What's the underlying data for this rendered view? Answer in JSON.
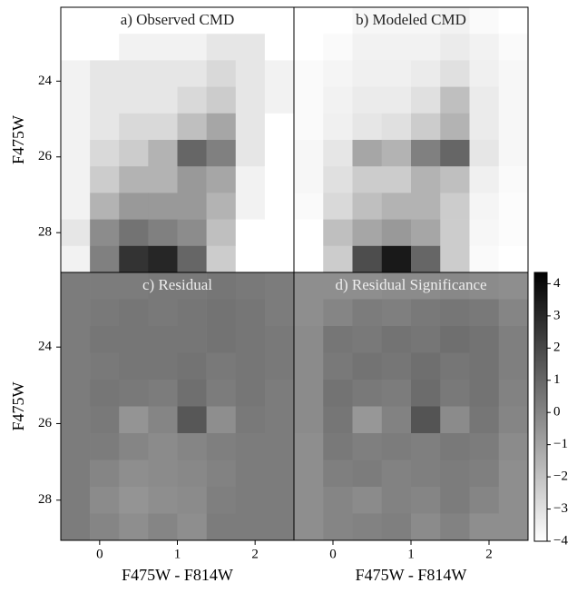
{
  "chart_data": [
    {
      "type": "heatmap",
      "title": "a) Observed CMD",
      "cmap": "gray_r",
      "zlim": [
        0,
        1
      ],
      "xbins": [
        -0.5,
        -0.125,
        0.25,
        0.625,
        1.0,
        1.375,
        1.75,
        2.125,
        2.5
      ],
      "ybins": [
        22.05,
        22.75,
        23.45,
        24.15,
        24.85,
        25.55,
        26.25,
        26.95,
        27.65,
        28.35,
        29.05
      ],
      "xlim": [
        -0.5,
        2.5
      ],
      "ylim": [
        22.05,
        29.05
      ],
      "ylabel": "F475W",
      "yticks": [
        24,
        26,
        28
      ],
      "z": [
        [
          0,
          0,
          0,
          0,
          0,
          0,
          0,
          0
        ],
        [
          0,
          0,
          0.05,
          0.05,
          0.05,
          0.1,
          0.1,
          0
        ],
        [
          0.05,
          0.1,
          0.1,
          0.1,
          0.1,
          0.15,
          0.1,
          0.05
        ],
        [
          0.05,
          0.1,
          0.1,
          0.1,
          0.15,
          0.2,
          0.1,
          0.05
        ],
        [
          0.05,
          0.1,
          0.15,
          0.15,
          0.25,
          0.35,
          0.1,
          0
        ],
        [
          0.05,
          0.15,
          0.2,
          0.3,
          0.6,
          0.5,
          0.1,
          0
        ],
        [
          0.05,
          0.2,
          0.3,
          0.3,
          0.4,
          0.35,
          0.05,
          0
        ],
        [
          0.05,
          0.3,
          0.4,
          0.4,
          0.4,
          0.3,
          0.05,
          0
        ],
        [
          0.1,
          0.45,
          0.55,
          0.5,
          0.45,
          0.25,
          0,
          0
        ],
        [
          0.05,
          0.5,
          0.8,
          0.85,
          0.6,
          0.2,
          0,
          0
        ]
      ]
    },
    {
      "type": "heatmap",
      "title": "b) Modeled CMD",
      "cmap": "gray_r",
      "zlim": [
        0,
        1
      ],
      "xbins": [
        -0.5,
        -0.125,
        0.25,
        0.625,
        1.0,
        1.375,
        1.75,
        2.125,
        2.5
      ],
      "ybins": [
        22.05,
        22.75,
        23.45,
        24.15,
        24.85,
        25.55,
        26.25,
        26.95,
        27.65,
        28.35,
        29.05
      ],
      "xlim": [
        -0.5,
        2.5
      ],
      "ylim": [
        22.05,
        29.05
      ],
      "z": [
        [
          0,
          0,
          0.03,
          0.03,
          0.03,
          0.05,
          0.02,
          0
        ],
        [
          0,
          0.02,
          0.05,
          0.05,
          0.05,
          0.08,
          0.05,
          0.02
        ],
        [
          0.02,
          0.04,
          0.06,
          0.06,
          0.08,
          0.12,
          0.06,
          0.03
        ],
        [
          0.02,
          0.05,
          0.08,
          0.08,
          0.12,
          0.25,
          0.08,
          0.03
        ],
        [
          0.02,
          0.06,
          0.1,
          0.12,
          0.2,
          0.3,
          0.08,
          0.03
        ],
        [
          0.03,
          0.1,
          0.35,
          0.3,
          0.5,
          0.6,
          0.1,
          0.03
        ],
        [
          0.03,
          0.12,
          0.2,
          0.2,
          0.3,
          0.25,
          0.06,
          0.02
        ],
        [
          0.02,
          0.15,
          0.25,
          0.3,
          0.3,
          0.2,
          0.04,
          0.01
        ],
        [
          0,
          0.25,
          0.35,
          0.4,
          0.35,
          0.2,
          0.03,
          0.01
        ],
        [
          0,
          0.2,
          0.7,
          0.9,
          0.6,
          0.2,
          0.02,
          0
        ]
      ]
    },
    {
      "type": "heatmap",
      "title": "c) Residual",
      "cmap": "gray_r",
      "zlim": [
        -4,
        4.35
      ],
      "xbins": [
        -0.5,
        -0.125,
        0.25,
        0.625,
        1.0,
        1.375,
        1.75,
        2.125,
        2.5
      ],
      "ybins": [
        22.05,
        22.75,
        23.45,
        24.15,
        24.85,
        25.55,
        26.25,
        26.95,
        27.65,
        28.35,
        29.05
      ],
      "xlim": [
        -0.5,
        2.5
      ],
      "ylim": [
        22.05,
        29.05
      ],
      "xlabel": "F475W - F814W",
      "ylabel": "F475W",
      "xticks": [
        0,
        1,
        2
      ],
      "yticks": [
        24,
        26,
        28
      ],
      "z": [
        [
          0.3,
          0.3,
          0.3,
          0.4,
          0.4,
          0.5,
          0.4,
          0.3
        ],
        [
          0.3,
          0.4,
          0.5,
          0.4,
          0.5,
          0.6,
          0.5,
          0.3
        ],
        [
          0.3,
          0.5,
          0.5,
          0.5,
          0.5,
          0.6,
          0.5,
          0.4
        ],
        [
          0.3,
          0.4,
          0.5,
          0.5,
          0.6,
          0.4,
          0.5,
          0.4
        ],
        [
          0.3,
          0.5,
          0.4,
          0.3,
          0.7,
          0.3,
          0.5,
          0.3
        ],
        [
          0.3,
          0.4,
          -0.5,
          0,
          1.5,
          -0.3,
          0.4,
          0.3
        ],
        [
          0.3,
          0.3,
          0,
          -0.2,
          0,
          0.2,
          0.3,
          0.3
        ],
        [
          0.3,
          0,
          -0.3,
          -0.2,
          -0.1,
          0.1,
          0.3,
          0.3
        ],
        [
          0.3,
          -0.2,
          -0.5,
          -0.3,
          -0.2,
          0.2,
          0.3,
          0.3
        ],
        [
          0.3,
          0,
          -0.3,
          0,
          -0.3,
          0.3,
          0.3,
          0.3
        ]
      ]
    },
    {
      "type": "heatmap",
      "title": "d) Residual Significance",
      "cmap": "gray_r",
      "zlim": [
        -4,
        4.35
      ],
      "xbins": [
        -0.5,
        -0.125,
        0.25,
        0.625,
        1.0,
        1.375,
        1.75,
        2.125,
        2.5
      ],
      "ybins": [
        22.05,
        22.75,
        23.45,
        24.15,
        24.85,
        25.55,
        26.25,
        26.95,
        27.65,
        28.35,
        29.05
      ],
      "xlim": [
        -0.5,
        2.5
      ],
      "ylim": [
        22.05,
        29.05
      ],
      "xlabel": "F475W - F814W",
      "xticks": [
        0,
        1,
        2
      ],
      "z": [
        [
          -0.3,
          -0.3,
          -0.3,
          -0.2,
          -0.2,
          -0.1,
          -0.2,
          -0.3
        ],
        [
          -0.3,
          0,
          0.3,
          0.2,
          0.4,
          0.5,
          0.4,
          0
        ],
        [
          -0.2,
          0.5,
          0.4,
          0.6,
          0.5,
          0.7,
          0.6,
          0.2
        ],
        [
          -0.2,
          0.4,
          0.6,
          0.5,
          0.7,
          0.5,
          0.6,
          0.2
        ],
        [
          -0.2,
          0.6,
          0.4,
          0.3,
          0.8,
          0.4,
          0.6,
          0.1
        ],
        [
          -0.2,
          0.5,
          -0.6,
          0.1,
          1.6,
          -0.2,
          0.5,
          0
        ],
        [
          -0.3,
          0.4,
          0.2,
          0.3,
          0.2,
          0.4,
          0.3,
          -0.2
        ],
        [
          -0.3,
          0.2,
          0.3,
          0.1,
          0.2,
          0.3,
          0.2,
          -0.3
        ],
        [
          -0.3,
          0,
          -0.2,
          0.1,
          0,
          0.3,
          0,
          -0.3
        ],
        [
          -0.3,
          0,
          0.1,
          0.2,
          -0.2,
          0.1,
          -0.3,
          -0.3
        ]
      ]
    },
    {
      "type": "colorbar",
      "cmap": "gray_r",
      "zlim": [
        -4,
        4.35
      ],
      "ticks": [
        {
          "value": -4,
          "label": "−4"
        },
        {
          "value": -3,
          "label": "−3"
        },
        {
          "value": -2,
          "label": "−2"
        },
        {
          "value": -1,
          "label": "−1"
        },
        0,
        1,
        2,
        3,
        4
      ]
    }
  ]
}
